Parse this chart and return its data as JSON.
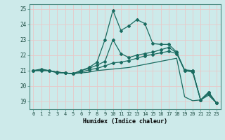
{
  "title": "",
  "xlabel": "Humidex (Indice chaleur)",
  "ylabel": "",
  "background_color": "#cdeaea",
  "grid_color": "#e8c8c8",
  "line_color": "#1a6b60",
  "xlim": [
    -0.5,
    23.5
  ],
  "ylim": [
    18.5,
    25.3
  ],
  "yticks": [
    19,
    20,
    21,
    22,
    23,
    24,
    25
  ],
  "xticks": [
    0,
    1,
    2,
    3,
    4,
    5,
    6,
    7,
    8,
    9,
    10,
    11,
    12,
    13,
    14,
    15,
    16,
    17,
    18,
    19,
    20,
    21,
    22,
    23
  ],
  "series": [
    {
      "x": [
        0,
        1,
        2,
        3,
        4,
        5,
        6,
        7,
        8,
        9,
        10,
        11,
        12,
        13,
        14,
        15,
        16,
        17,
        18,
        19,
        20,
        21,
        22,
        23
      ],
      "y": [
        21.0,
        21.1,
        21.0,
        20.85,
        20.85,
        20.8,
        21.0,
        21.2,
        21.55,
        23.0,
        24.9,
        23.6,
        23.9,
        24.3,
        24.05,
        22.75,
        22.7,
        22.7,
        22.2,
        21.0,
        20.9,
        19.1,
        19.6,
        18.9
      ],
      "marker": "D",
      "markersize": 2.0,
      "linewidth": 0.9,
      "zorder": 4
    },
    {
      "x": [
        0,
        1,
        2,
        3,
        4,
        5,
        6,
        7,
        8,
        9,
        10,
        11,
        12,
        13,
        14,
        15,
        16,
        17,
        18,
        19,
        20,
        21,
        22,
        23
      ],
      "y": [
        21.0,
        21.05,
        21.0,
        20.9,
        20.85,
        20.8,
        21.0,
        21.15,
        21.35,
        21.6,
        23.0,
        22.1,
        21.85,
        22.0,
        22.1,
        22.2,
        22.35,
        22.5,
        22.15,
        21.05,
        21.0,
        19.1,
        19.6,
        18.9
      ],
      "marker": "D",
      "markersize": 2.0,
      "linewidth": 0.9,
      "zorder": 3
    },
    {
      "x": [
        0,
        1,
        2,
        3,
        4,
        5,
        6,
        7,
        8,
        9,
        10,
        11,
        12,
        13,
        14,
        15,
        16,
        17,
        18,
        19,
        20,
        21,
        22,
        23
      ],
      "y": [
        21.0,
        21.0,
        21.0,
        20.9,
        20.85,
        20.8,
        20.9,
        21.05,
        21.15,
        21.3,
        21.5,
        21.55,
        21.65,
        21.8,
        21.95,
        22.05,
        22.15,
        22.25,
        22.1,
        21.0,
        21.0,
        19.1,
        19.5,
        18.9
      ],
      "marker": "D",
      "markersize": 2.0,
      "linewidth": 0.9,
      "zorder": 2
    },
    {
      "x": [
        0,
        1,
        2,
        3,
        4,
        5,
        6,
        7,
        8,
        9,
        10,
        11,
        12,
        13,
        14,
        15,
        16,
        17,
        18,
        19,
        20,
        21,
        22,
        23
      ],
      "y": [
        21.0,
        21.0,
        21.0,
        20.9,
        20.85,
        20.8,
        20.85,
        20.9,
        21.0,
        21.05,
        21.1,
        21.15,
        21.2,
        21.3,
        21.4,
        21.5,
        21.6,
        21.7,
        21.8,
        19.3,
        19.05,
        19.1,
        19.4,
        18.9
      ],
      "marker": null,
      "markersize": 0,
      "linewidth": 0.9,
      "zorder": 1
    }
  ]
}
